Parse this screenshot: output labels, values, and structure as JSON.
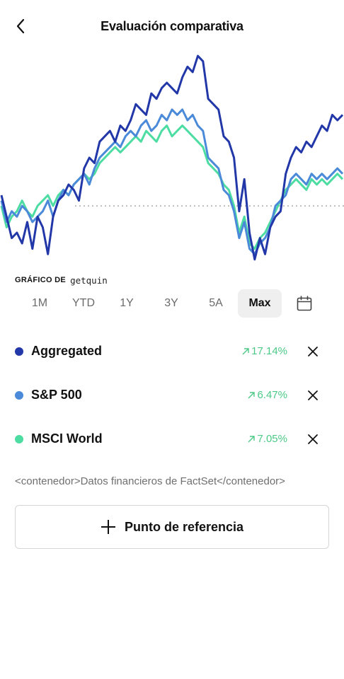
{
  "header": {
    "title": "Evaluación comparativa",
    "back_icon": "chevron-left-icon"
  },
  "attribution": {
    "label": "GRÁFICO DE",
    "brand": "getquin"
  },
  "time_ranges": [
    {
      "label": "1M",
      "active": false
    },
    {
      "label": "YTD",
      "active": false
    },
    {
      "label": "1Y",
      "active": false
    },
    {
      "label": "3Y",
      "active": false
    },
    {
      "label": "5A",
      "active": false
    },
    {
      "label": "Max",
      "active": true
    }
  ],
  "calendar_icon": "calendar-icon",
  "series": [
    {
      "name": "Aggregated",
      "color": "#2237a8",
      "change": "17.14%",
      "trend_icon": "arrow-up-right-icon",
      "remove_icon": "close-icon"
    },
    {
      "name": "S&P 500",
      "color": "#4a8ad8",
      "change": "6.47%",
      "trend_icon": "arrow-up-right-icon",
      "remove_icon": "close-icon"
    },
    {
      "name": "MSCI World",
      "color": "#4ddda2",
      "change": "7.05%",
      "trend_icon": "arrow-up-right-icon",
      "remove_icon": "close-icon"
    }
  ],
  "positive_color": "#4cc987",
  "source_text": "<contenedor>Datos financieros de FactSet</contenedor>",
  "benchmark_button": {
    "label": "Punto de referencia",
    "icon": "plus-icon"
  },
  "chart_data": {
    "type": "line",
    "baseline_value": 0,
    "ylim": [
      -12,
      30
    ],
    "series": [
      {
        "name": "Aggregated",
        "color": "#2237a8",
        "values": [
          2,
          -2,
          -6,
          -5,
          -7,
          -3,
          -8,
          -2,
          -4,
          -9,
          -2,
          1,
          2,
          4,
          3,
          1,
          7,
          9,
          8,
          12,
          13,
          14,
          12,
          15,
          14,
          16,
          19,
          18,
          17,
          21,
          20,
          22,
          23,
          22,
          21,
          24,
          26,
          25,
          28,
          27,
          20,
          19,
          18,
          13,
          12,
          9,
          -1,
          5,
          -5,
          -10,
          -6,
          -9,
          -4,
          -2,
          -1,
          6,
          9,
          11,
          10,
          12,
          11,
          13,
          15,
          14,
          17,
          16,
          17
        ]
      },
      {
        "name": "S&P 500",
        "color": "#4a8ad8",
        "values": [
          1,
          -3,
          -1,
          -2,
          0,
          -1,
          -3,
          -2,
          -1,
          1,
          -2,
          1,
          3,
          2,
          4,
          5,
          6,
          4,
          7,
          9,
          10,
          11,
          12,
          11,
          13,
          14,
          13,
          15,
          16,
          14,
          15,
          17,
          16,
          18,
          17,
          18,
          16,
          17,
          15,
          14,
          9,
          8,
          7,
          3,
          2,
          -1,
          -6,
          -3,
          -8,
          -9,
          -7,
          -6,
          -4,
          0,
          1,
          2,
          5,
          6,
          5,
          4,
          6,
          5,
          6,
          5,
          6,
          7,
          6
        ]
      },
      {
        "name": "MSCI World",
        "color": "#4ddda2",
        "values": [
          0,
          -4,
          -2,
          -1,
          1,
          -1,
          -2,
          0,
          1,
          2,
          0,
          2,
          3,
          2,
          4,
          5,
          6,
          5,
          6,
          8,
          9,
          10,
          11,
          10,
          11,
          12,
          13,
          12,
          14,
          13,
          12,
          14,
          15,
          13,
          14,
          15,
          14,
          13,
          12,
          11,
          8,
          7,
          6,
          4,
          3,
          0,
          -5,
          -2,
          -7,
          -8,
          -6,
          -5,
          -3,
          -1,
          1,
          3,
          4,
          5,
          4,
          3,
          5,
          4,
          5,
          4,
          5,
          6,
          5
        ]
      }
    ]
  }
}
